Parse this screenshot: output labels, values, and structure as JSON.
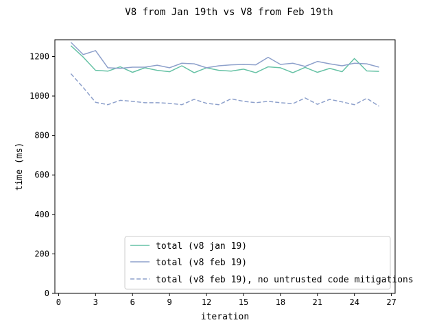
{
  "chart_data": {
    "type": "line",
    "title": "V8 from Jan 19th vs V8 from Feb 19th",
    "xlabel": "iteration",
    "ylabel": "time (ms)",
    "xlim": [
      -0.3,
      27.3
    ],
    "ylim": [
      0,
      1285
    ],
    "xticks": [
      0,
      3,
      6,
      9,
      12,
      15,
      18,
      21,
      24,
      27
    ],
    "yticks": [
      0,
      200,
      400,
      600,
      800,
      1000,
      1200
    ],
    "grid": false,
    "legend_position": "lower-right",
    "x": [
      1,
      2,
      3,
      4,
      5,
      6,
      7,
      8,
      9,
      10,
      11,
      12,
      13,
      14,
      15,
      16,
      17,
      18,
      19,
      20,
      21,
      22,
      23,
      24,
      25,
      26
    ],
    "series": [
      {
        "name": "total (v8 jan 19)",
        "color": "#66c2a5",
        "style": "solid",
        "values": [
          1255,
          1197,
          1130,
          1126,
          1148,
          1120,
          1143,
          1130,
          1123,
          1153,
          1118,
          1143,
          1130,
          1126,
          1136,
          1118,
          1148,
          1143,
          1118,
          1145,
          1120,
          1140,
          1123,
          1190,
          1127,
          1125
        ]
      },
      {
        "name": "total (v8 feb 19)",
        "color": "#8da0cb",
        "style": "solid",
        "values": [
          1272,
          1210,
          1230,
          1143,
          1140,
          1146,
          1146,
          1156,
          1143,
          1166,
          1163,
          1143,
          1153,
          1158,
          1160,
          1158,
          1196,
          1160,
          1166,
          1150,
          1175,
          1163,
          1153,
          1166,
          1163,
          1146
        ]
      },
      {
        "name": "total (v8 feb 19), no untrusted code mitigations",
        "color": "#8da0cb",
        "style": "dashed",
        "values": [
          1113,
          1043,
          968,
          956,
          978,
          973,
          966,
          966,
          963,
          956,
          983,
          963,
          956,
          986,
          973,
          966,
          973,
          966,
          961,
          990,
          958,
          983,
          970,
          956,
          988,
          948
        ]
      }
    ]
  }
}
